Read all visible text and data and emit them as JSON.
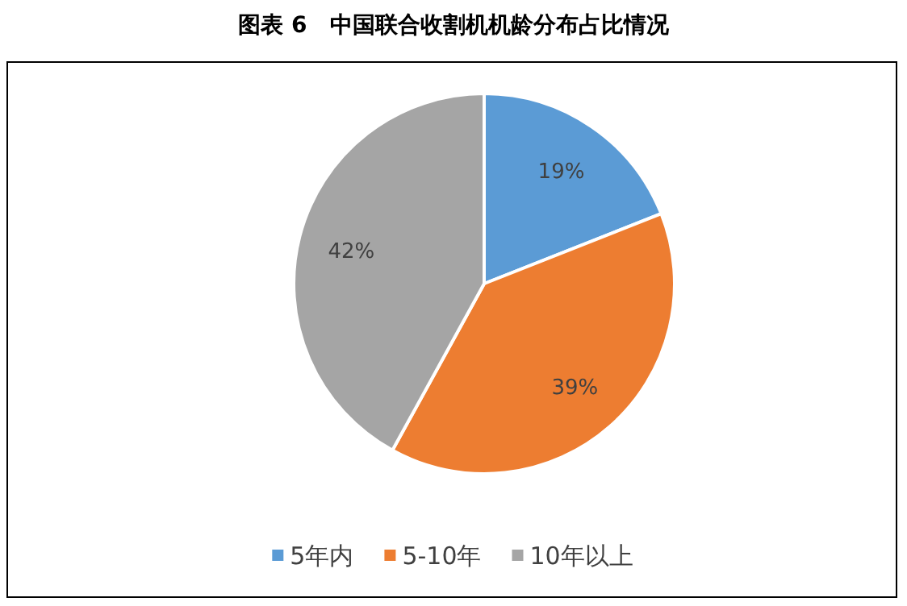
{
  "chart_data": {
    "type": "pie",
    "title": "图表 6　中国联合收割机机龄分布占比情况",
    "categories": [
      "5年内",
      "5-10年",
      "10年以上"
    ],
    "values": [
      19,
      39,
      42
    ],
    "colors": [
      "#5b9bd5",
      "#ed7d31",
      "#a5a5a5"
    ],
    "value_labels": [
      "19%",
      "39%",
      "42%"
    ],
    "legend": "bottom"
  }
}
